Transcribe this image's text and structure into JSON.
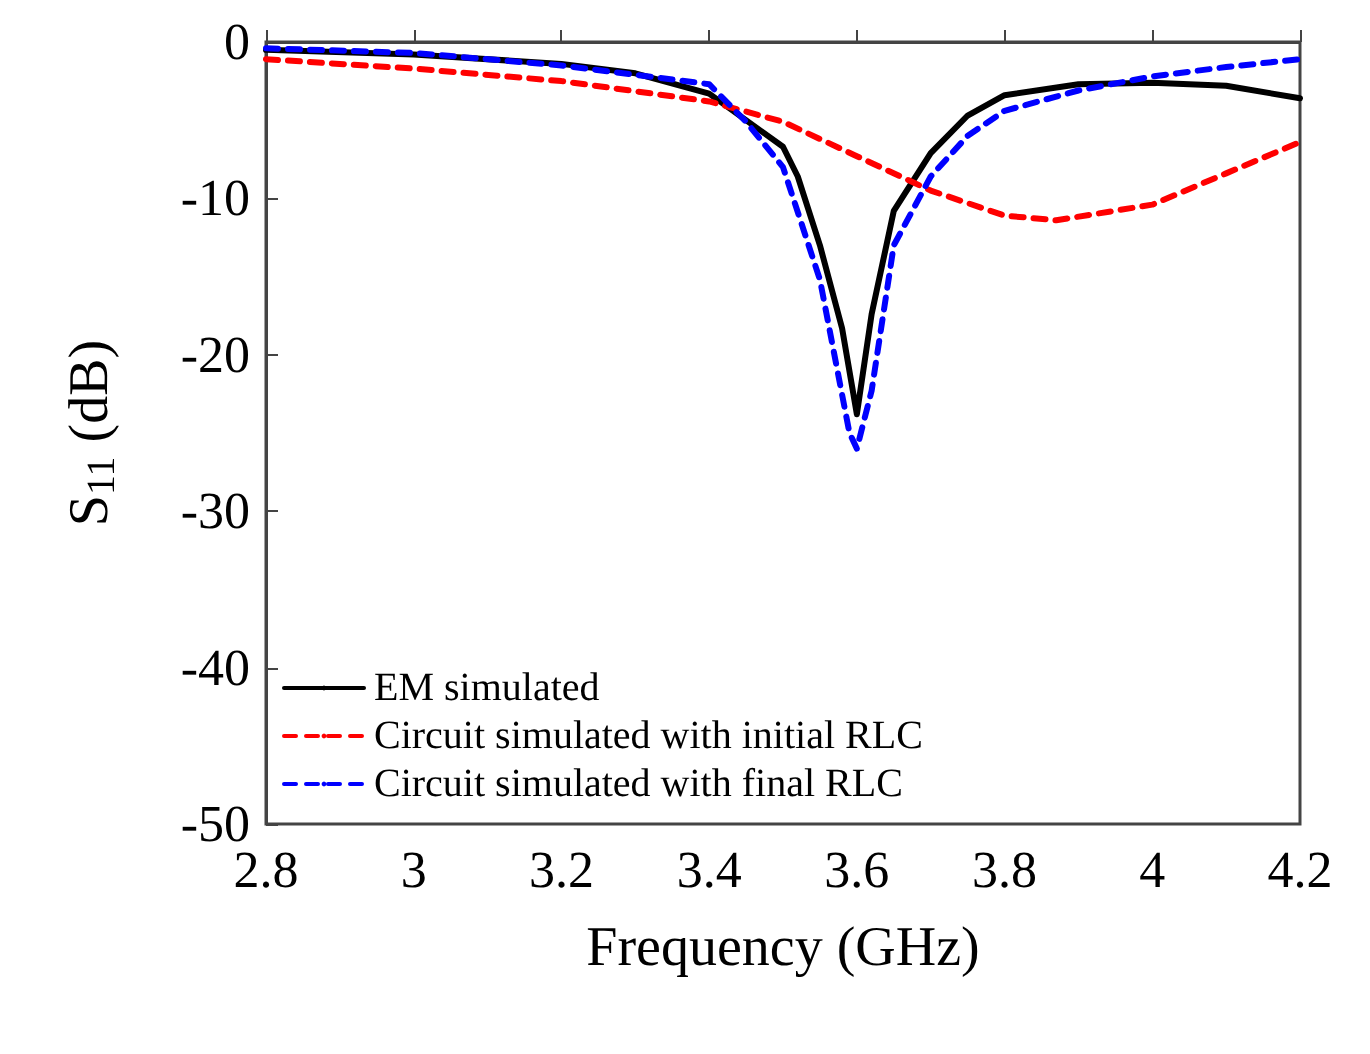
{
  "chart_data": {
    "type": "line",
    "xlabel": "Frequency (GHz)",
    "ylabel": "S$_{11}$ (dB)",
    "xlim": [
      2.8,
      4.2
    ],
    "xticks": [
      2.8,
      3,
      3.2,
      3.4,
      3.6,
      3.8,
      4,
      4.2
    ],
    "ylim": [
      -50,
      0
    ],
    "yticks": [
      -50,
      -40,
      -30,
      -20,
      -10,
      0
    ],
    "grid": false,
    "legend": "bottom left",
    "marker": "none",
    "series": [
      {
        "name": "EM simulated",
        "color": "#000000",
        "line_style": "solid",
        "x": [
          2.8,
          3.0,
          3.2,
          3.3,
          3.4,
          3.5,
          3.52,
          3.55,
          3.58,
          3.6,
          3.62,
          3.65,
          3.7,
          3.75,
          3.8,
          3.9,
          4.0,
          4.1,
          4.2
        ],
        "values": [
          -0.5,
          -0.8,
          -1.4,
          -2.0,
          -3.3,
          -6.7,
          -8.6,
          -13,
          -18.3,
          -23.8,
          -17.4,
          -10.8,
          -7.1,
          -4.7,
          -3.4,
          -2.7,
          -2.6,
          -2.8,
          -3.6
        ]
      },
      {
        "name": "Circuit simulated with initial RLC",
        "color": "#ff0000",
        "line_style": "dashed",
        "x": [
          2.8,
          3.0,
          3.2,
          3.4,
          3.5,
          3.6,
          3.7,
          3.8,
          3.87,
          4.0,
          4.1,
          4.2
        ],
        "values": [
          -1.1,
          -1.7,
          -2.5,
          -3.8,
          -5.1,
          -7.3,
          -9.5,
          -11.1,
          -11.4,
          -10.4,
          -8.4,
          -6.4
        ]
      },
      {
        "name": "Circuit simulated with final RLC",
        "color": "#0000ff",
        "line_style": "dashed",
        "x": [
          2.8,
          3.0,
          3.2,
          3.4,
          3.45,
          3.5,
          3.55,
          3.59,
          3.6,
          3.62,
          3.65,
          3.7,
          3.75,
          3.8,
          3.9,
          4.0,
          4.1,
          4.2
        ],
        "values": [
          -0.4,
          -0.7,
          -1.5,
          -2.7,
          -5.1,
          -8,
          -15.2,
          -25,
          -26,
          -22.3,
          -13,
          -8.6,
          -6,
          -4.4,
          -3.1,
          -2.2,
          -1.6,
          -1.1
        ]
      }
    ]
  }
}
